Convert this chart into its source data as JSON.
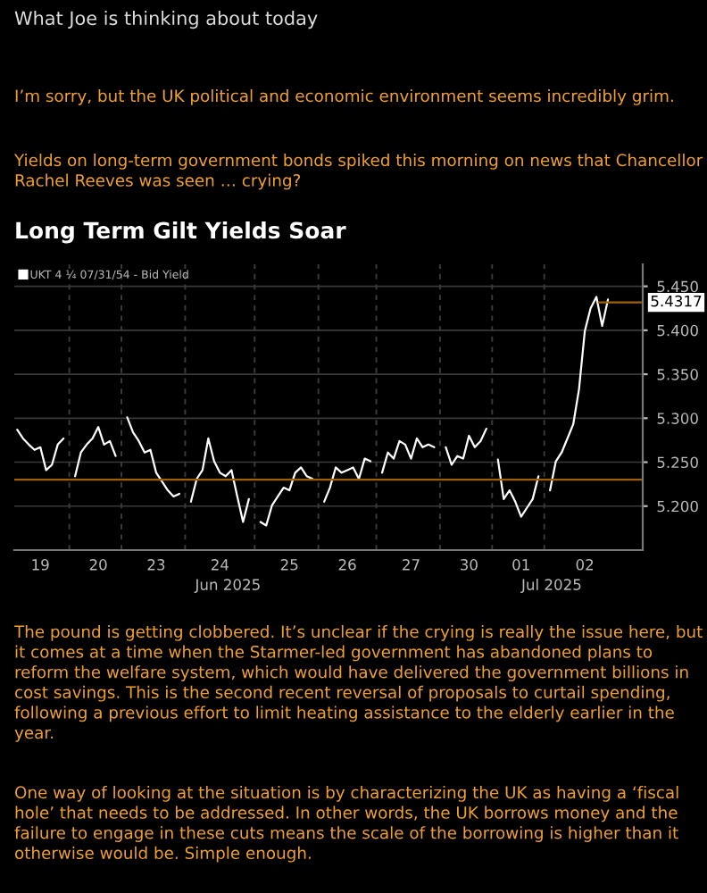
{
  "chart_data": {
    "type": "line",
    "title": "Long Term Gilt Yields Soar",
    "annotations": [
      "What Joe is thinking about today",
      "I’m sorry, but the UK political and economic environment seems incredibly grim.",
      "Yields on long-term government bonds spiked this morning on news that Chancellor Rachel Reeves was seen … crying?",
      "Jun 2025",
      "Jul 2025",
      "The pound is getting clobbered. It’s unclear if the crying is really the issue here, but it comes at a time when the Starmer-led government has abandoned plans to reform the welfare system, which would have delivered the government billions in cost savings. This is the second recent reversal of proposals to curtail spending, following a previous effort to limit heating assistance to the elderly earlier in the year.",
      "One way of looking at the situation is by characterizing the UK as having a ‘fiscal hole’ that needs to be addressed. In other words, the UK borrows money and the failure to engage in these cuts means the scale of the borrowing is higher than it otherwise would be. Simple enough."
    ],
    "categories": [
      null,
      null,
      null,
      null,
      "19",
      null,
      null,
      null,
      null,
      null,
      null,
      null,
      null,
      null,
      "20",
      null,
      null,
      null,
      null,
      null,
      null,
      null,
      null,
      null,
      "23",
      null,
      null,
      null,
      null,
      null,
      null,
      null,
      null,
      null,
      null,
      "24",
      null,
      null,
      null,
      null,
      null,
      null,
      null,
      null,
      null,
      null,
      null,
      "25",
      null,
      null,
      null,
      null,
      null,
      null,
      null,
      null,
      null,
      "26",
      null,
      null,
      null,
      null,
      null,
      null,
      null,
      null,
      null,
      null,
      "27",
      null,
      null,
      null,
      null,
      null,
      null,
      null,
      null,
      null,
      "30",
      null,
      null,
      null,
      null,
      null,
      null,
      null,
      null,
      "01",
      null,
      null,
      null,
      null,
      null,
      null,
      null,
      null,
      null,
      null,
      "02",
      null,
      null,
      null,
      null
    ],
    "series": [
      {
        "name": "UKT 4 ¼ 07/31/54 - Bid Yield",
        "color": "#ffffff",
        "values": [
          5.287,
          5.277,
          5.27,
          5.264,
          5.267,
          5.241,
          5.247,
          5.27,
          5.277,
          null,
          5.234,
          5.261,
          5.27,
          5.277,
          5.29,
          5.27,
          5.274,
          5.257,
          null,
          5.301,
          5.284,
          5.274,
          5.261,
          5.264,
          5.238,
          5.228,
          5.218,
          5.211,
          5.214,
          null,
          5.205,
          5.231,
          5.241,
          5.277,
          5.251,
          5.238,
          5.234,
          5.241,
          5.211,
          5.182,
          5.208,
          null,
          5.182,
          5.178,
          5.201,
          5.211,
          5.221,
          5.218,
          5.238,
          5.244,
          5.234,
          5.231,
          null,
          5.205,
          5.221,
          5.244,
          5.238,
          5.241,
          5.244,
          5.231,
          5.254,
          5.251,
          null,
          5.238,
          5.261,
          5.254,
          5.274,
          5.27,
          5.254,
          5.277,
          5.267,
          5.27,
          5.267,
          null,
          5.267,
          5.247,
          5.257,
          5.254,
          5.28,
          5.267,
          5.274,
          5.288,
          null,
          5.253,
          5.208,
          5.218,
          5.205,
          5.188,
          5.198,
          5.208,
          5.234,
          null,
          5.218,
          5.251,
          5.261,
          5.277,
          5.293,
          5.333,
          5.399,
          5.425,
          5.438,
          5.405,
          5.435
        ]
      }
    ],
    "ylim": [
      5.15,
      5.475
    ],
    "yticks": [
      {
        "value": 5.2,
        "label": "5.200"
      },
      {
        "value": 5.25,
        "label": "5.250"
      },
      {
        "value": 5.3,
        "label": "5.300"
      },
      {
        "value": 5.35,
        "label": "5.350"
      },
      {
        "value": 5.4,
        "label": "5.400"
      },
      {
        "value": 5.45,
        "label": "5.450"
      }
    ],
    "ref_lines": [
      {
        "axis": "y",
        "value": 5.23,
        "color": "#a0600a"
      },
      {
        "axis": "y",
        "value": 5.4317,
        "label": "5.4317",
        "color": "#a0600a"
      }
    ],
    "grid": true,
    "legend": "top left",
    "marker": "none",
    "line_style": "solid"
  }
}
